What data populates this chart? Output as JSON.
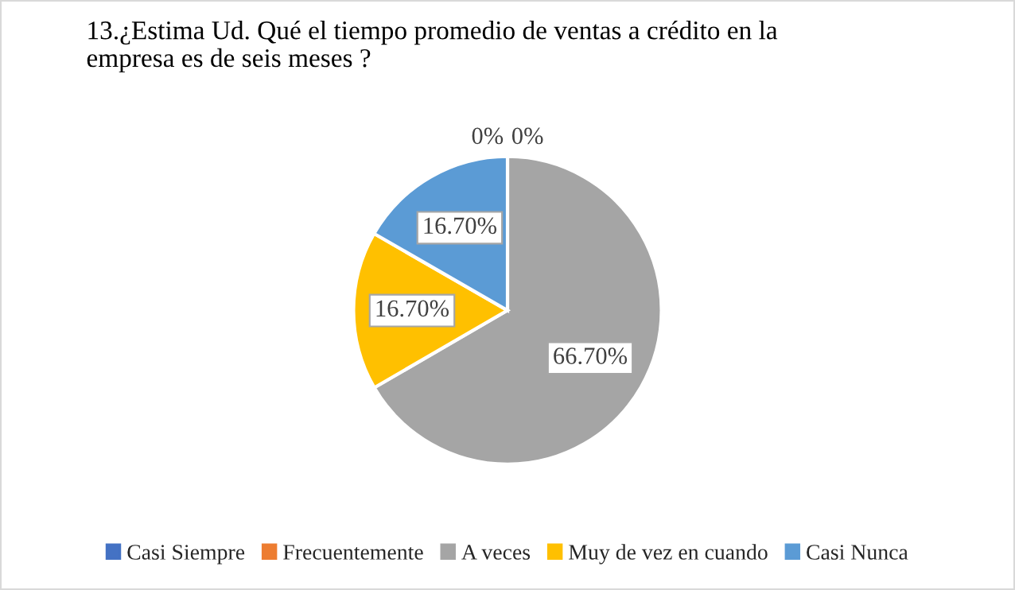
{
  "chart_data": {
    "type": "pie",
    "title": "13.¿Estima Ud. Qué el tiempo promedio de ventas a crédito en la\nempresa es de seis meses ?",
    "categories": [
      "Casi Siempre",
      "Frecuentemente",
      "A veces",
      "Muy de vez en cuando",
      "Casi Nunca"
    ],
    "values": [
      0,
      0,
      66.7,
      16.7,
      16.7
    ],
    "value_labels": [
      "0%",
      "0%",
      "66.70%",
      "16.70%",
      "16.70%"
    ],
    "colors": [
      "#4472c4",
      "#ed7d31",
      "#a5a5a5",
      "#ffc000",
      "#5b9bd5"
    ],
    "legend": "bottom"
  }
}
